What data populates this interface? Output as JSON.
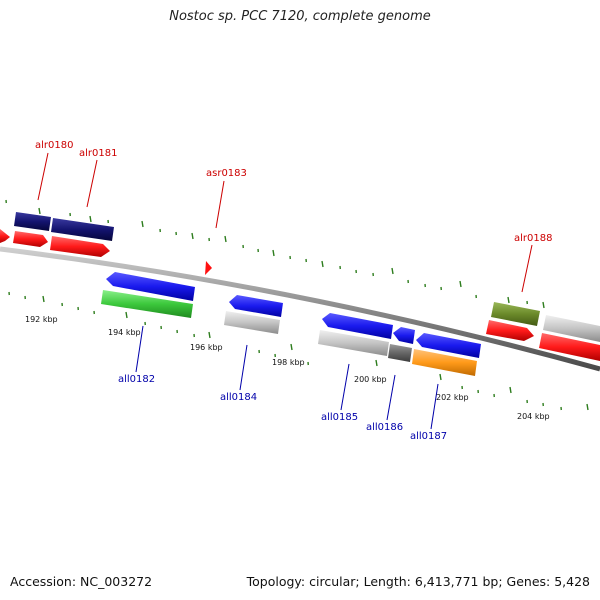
{
  "title": "Nostoc sp. PCC 7120, complete genome",
  "footer": {
    "accession": "Accession: NC_003272",
    "summary": "Topology: circular; Length: 6,413,771 bp; Genes: 5,428"
  },
  "colors": {
    "forward_label": "#cc0000",
    "reverse_label": "#0000aa",
    "backbone": "#888888",
    "tick": "#2e7d1e"
  },
  "scale": [
    "192 kbp",
    "194 kbp",
    "196 kbp",
    "198 kbp",
    "200 kbp",
    "202 kbp",
    "204 kbp"
  ],
  "forward_labels": [
    "alr0180",
    "alr0181",
    "asr0183",
    "alr0188"
  ],
  "reverse_labels": [
    "all0182",
    "all0184",
    "all0185",
    "all0186",
    "all0187"
  ]
}
